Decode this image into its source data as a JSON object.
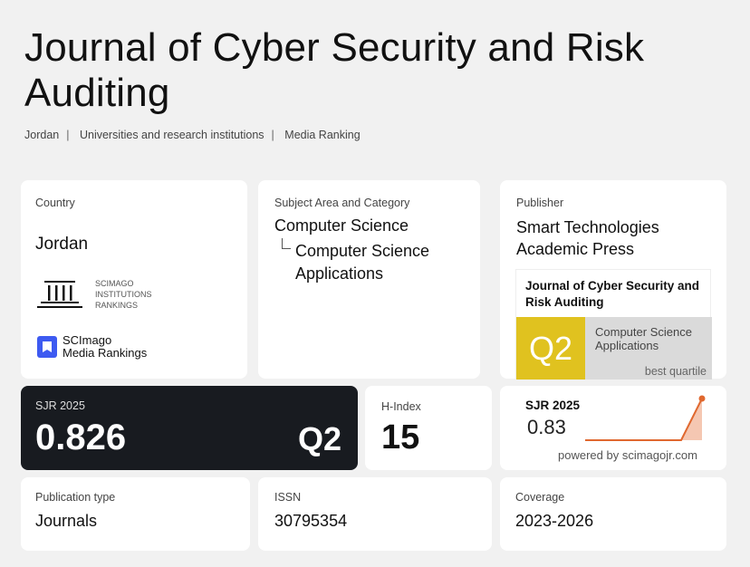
{
  "title": "Journal of Cyber Security and Risk Auditing",
  "breadcrumb": [
    "Jordan",
    "Universities and research institutions",
    "Media Ranking"
  ],
  "country": {
    "label": "Country",
    "value": "Jordan",
    "sir_logo": "SCIMAGO INSTITUTIONS RANKINGS",
    "smr_logo_line1": "SCImago",
    "smr_logo_line2": "Media Rankings"
  },
  "subject": {
    "label": "Subject Area and Category",
    "area": "Computer Science",
    "category": "Computer Science Applications"
  },
  "publisher": {
    "label": "Publisher",
    "value": "Smart Technologies Academic Press",
    "widget": {
      "journal": "Journal of Cyber Security and Risk Auditing",
      "quartile": "Q2",
      "category": "Computer Science Applications",
      "note": "best quartile",
      "quartile_color": "#e0c21f"
    }
  },
  "sjr": {
    "label": "SJR 2025",
    "value": "0.826",
    "quartile": "Q2"
  },
  "hindex": {
    "label": "H-Index",
    "value": "15"
  },
  "sjr_widget": {
    "label": "SJR 2025",
    "value": "0.83",
    "powered": "powered by scimagojr.com",
    "line_color": "#e0682f"
  },
  "pubtype": {
    "label": "Publication type",
    "value": "Journals"
  },
  "issn": {
    "label": "ISSN",
    "value": "30795354"
  },
  "coverage": {
    "label": "Coverage",
    "value": "2023-2026"
  }
}
